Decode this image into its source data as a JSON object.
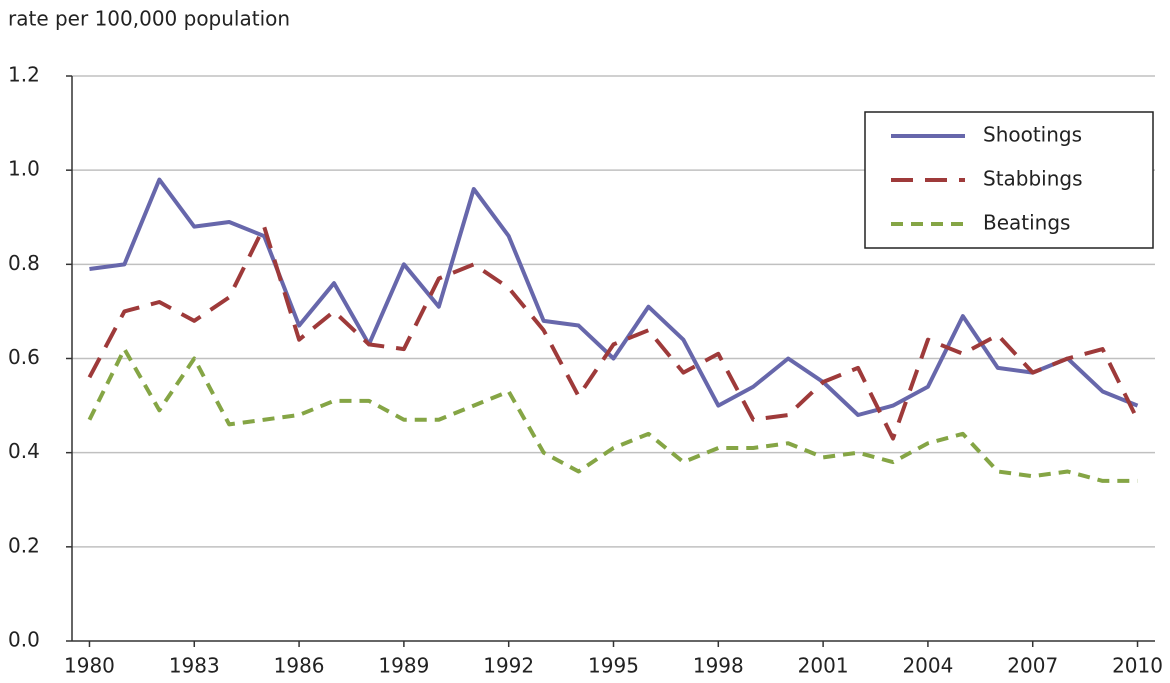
{
  "chart_data": {
    "type": "line",
    "y_axis_label": "rate per 100,000 population",
    "x": [
      1980,
      1981,
      1982,
      1983,
      1984,
      1985,
      1986,
      1987,
      1988,
      1989,
      1990,
      1991,
      1992,
      1993,
      1994,
      1995,
      1996,
      1997,
      1998,
      1999,
      2000,
      2001,
      2002,
      2003,
      2004,
      2005,
      2006,
      2007,
      2008,
      2009,
      2010
    ],
    "series": [
      {
        "name": "Shootings",
        "color": "#6767ab",
        "style": "solid",
        "values": [
          0.79,
          0.8,
          0.98,
          0.88,
          0.89,
          0.86,
          0.67,
          0.76,
          0.63,
          0.8,
          0.71,
          0.96,
          0.86,
          0.68,
          0.67,
          0.6,
          0.71,
          0.64,
          0.5,
          0.54,
          0.6,
          0.55,
          0.48,
          0.5,
          0.54,
          0.69,
          0.58,
          0.57,
          0.6,
          0.53,
          0.5
        ]
      },
      {
        "name": "Stabbings",
        "color": "#9e3a3a",
        "style": "dashed",
        "values": [
          0.56,
          0.7,
          0.72,
          0.68,
          0.73,
          0.88,
          0.64,
          0.7,
          0.63,
          0.62,
          0.77,
          0.8,
          0.75,
          0.66,
          0.52,
          0.63,
          0.66,
          0.57,
          0.61,
          0.47,
          0.48,
          0.55,
          0.58,
          0.43,
          0.64,
          0.61,
          0.65,
          0.57,
          0.6,
          0.62,
          0.47
        ]
      },
      {
        "name": "Beatings",
        "color": "#85a545",
        "style": "dotted",
        "values": [
          0.47,
          0.62,
          0.49,
          0.6,
          0.46,
          0.47,
          0.48,
          0.51,
          0.51,
          0.47,
          0.47,
          0.5,
          0.53,
          0.4,
          0.36,
          0.41,
          0.44,
          0.38,
          0.41,
          0.41,
          0.42,
          0.39,
          0.4,
          0.38,
          0.42,
          0.44,
          0.36,
          0.35,
          0.36,
          0.34,
          0.34
        ]
      }
    ],
    "xlim": [
      1979.5,
      2010.5
    ],
    "xticks": [
      1980,
      1983,
      1986,
      1989,
      1992,
      1995,
      1998,
      2001,
      2004,
      2007,
      2010
    ],
    "ylim": [
      0,
      1.2
    ],
    "yticks": [
      {
        "value": 0,
        "label": "0.0"
      },
      0.2,
      0.4,
      0.6,
      0.8,
      {
        "value": 1,
        "label": "1.0"
      },
      1.2
    ],
    "grid": true,
    "legend": "upper right"
  }
}
